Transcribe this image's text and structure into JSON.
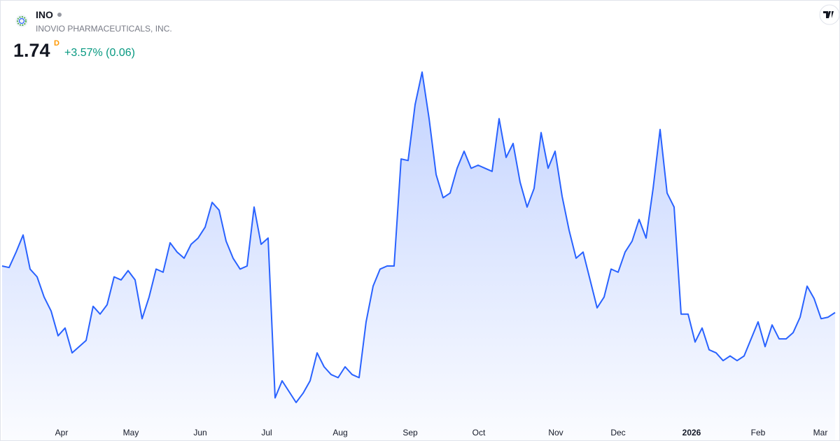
{
  "header": {
    "ticker": "INO",
    "company": "INOVIO PHARMACEUTICALS, INC.",
    "price": "1.74",
    "market_flag": "D",
    "change": "+3.57% (0.06)"
  },
  "chart_data": {
    "type": "area",
    "color": "#2962ff",
    "values": [
      2.04,
      2.03,
      2.13,
      2.24,
      2.02,
      1.97,
      1.84,
      1.75,
      1.59,
      1.64,
      1.48,
      1.52,
      1.56,
      1.78,
      1.73,
      1.79,
      1.97,
      1.95,
      2.01,
      1.95,
      1.7,
      1.84,
      2.02,
      2.0,
      2.19,
      2.13,
      2.09,
      2.18,
      2.22,
      2.29,
      2.45,
      2.4,
      2.2,
      2.09,
      2.02,
      2.04,
      2.42,
      2.18,
      2.22,
      1.19,
      1.3,
      1.23,
      1.16,
      1.22,
      1.3,
      1.48,
      1.39,
      1.34,
      1.32,
      1.39,
      1.34,
      1.32,
      1.68,
      1.91,
      2.02,
      2.04,
      2.04,
      2.73,
      2.72,
      3.08,
      3.29,
      2.99,
      2.63,
      2.48,
      2.51,
      2.67,
      2.78,
      2.67,
      2.69,
      2.67,
      2.65,
      2.99,
      2.74,
      2.83,
      2.58,
      2.42,
      2.54,
      2.9,
      2.67,
      2.78,
      2.49,
      2.27,
      2.09,
      2.13,
      1.95,
      1.77,
      1.84,
      2.02,
      2.0,
      2.13,
      2.2,
      2.34,
      2.22,
      2.54,
      2.92,
      2.51,
      2.42,
      1.73,
      1.73,
      1.55,
      1.64,
      1.5,
      1.48,
      1.43,
      1.46,
      1.43,
      1.46,
      1.57,
      1.68,
      1.52,
      1.66,
      1.57,
      1.57,
      1.61,
      1.71,
      1.91,
      1.83,
      1.7,
      1.71,
      1.74
    ],
    "xticks": [
      {
        "value": 8.5,
        "label": "Apr"
      },
      {
        "value": 18.4,
        "label": "May"
      },
      {
        "value": 28.3,
        "label": "Jun"
      },
      {
        "value": 37.8,
        "label": "Jul"
      },
      {
        "value": 48.3,
        "label": "Aug"
      },
      {
        "value": 58.3,
        "label": "Sep"
      },
      {
        "value": 68.1,
        "label": "Oct"
      },
      {
        "value": 79.1,
        "label": "Nov"
      },
      {
        "value": 88,
        "label": "Dec"
      },
      {
        "value": 98.5,
        "label": "2026"
      },
      {
        "value": 108,
        "label": "Feb"
      },
      {
        "value": 116.9,
        "label": "Mar"
      }
    ]
  }
}
